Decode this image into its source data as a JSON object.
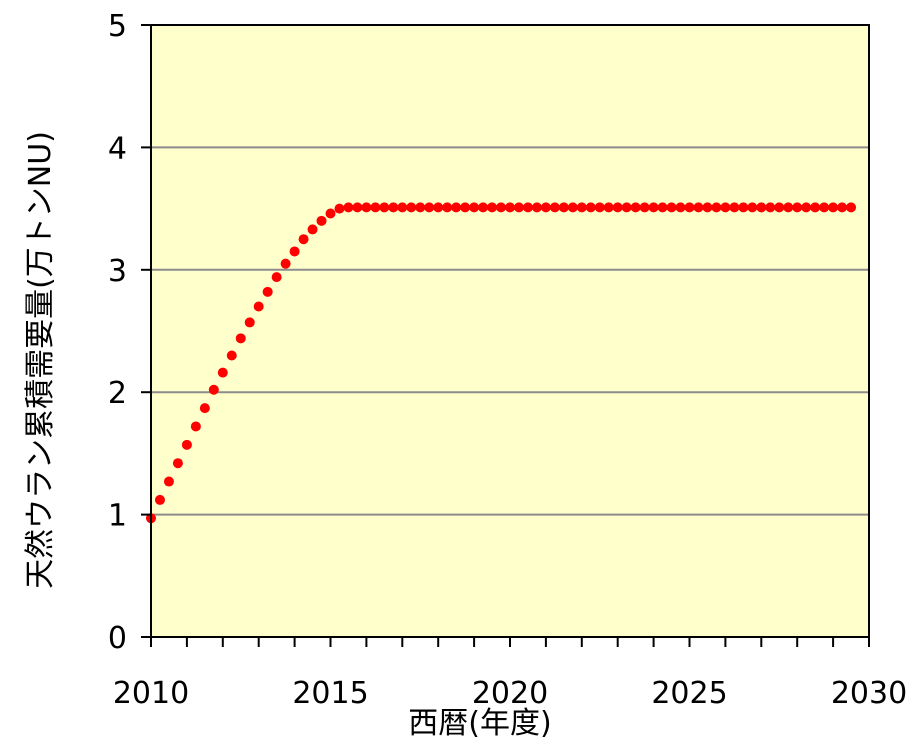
{
  "chart_data": {
    "type": "scatter",
    "xlabel": "西暦(年度)",
    "ylabel": "天然ウラン累積需要量(万トンNU)",
    "xlim": [
      2010,
      2030
    ],
    "ylim": [
      0,
      5
    ],
    "x_ticks": [
      "2010",
      "2015",
      "2020",
      "2025",
      "2030"
    ],
    "y_ticks": [
      "0",
      "1",
      "2",
      "3",
      "4",
      "5"
    ],
    "grid": "horizontal",
    "plot_background": "#FFFFCC",
    "marker_color": "#FF0000",
    "series": [
      {
        "x": [
          2010.0,
          2010.25,
          2010.5,
          2010.75,
          2011.0,
          2011.25,
          2011.5,
          2011.75,
          2012.0,
          2012.25,
          2012.5,
          2012.75,
          2013.0,
          2013.25,
          2013.5,
          2013.75,
          2014.0,
          2014.25,
          2014.5,
          2014.75,
          2015.0,
          2015.25,
          2015.5,
          2015.75,
          2016.0,
          2016.25,
          2016.5,
          2016.75,
          2017.0,
          2017.25,
          2017.5,
          2017.75,
          2018.0,
          2018.25,
          2018.5,
          2018.75,
          2019.0,
          2019.25,
          2019.5,
          2019.75,
          2020.0,
          2020.25,
          2020.5,
          2020.75,
          2021.0,
          2021.25,
          2021.5,
          2021.75,
          2022.0,
          2022.25,
          2022.5,
          2022.75,
          2023.0,
          2023.25,
          2023.5,
          2023.75,
          2024.0,
          2024.25,
          2024.5,
          2024.75,
          2025.0,
          2025.25,
          2025.5,
          2025.75,
          2026.0,
          2026.25,
          2026.5,
          2026.75,
          2027.0,
          2027.25,
          2027.5,
          2027.75,
          2028.0,
          2028.25,
          2028.5,
          2028.75,
          2029.0,
          2029.25,
          2029.5
        ],
        "y": [
          0.97,
          1.12,
          1.27,
          1.42,
          1.57,
          1.72,
          1.87,
          2.02,
          2.16,
          2.3,
          2.44,
          2.57,
          2.7,
          2.82,
          2.94,
          3.05,
          3.15,
          3.25,
          3.33,
          3.4,
          3.46,
          3.5,
          3.51,
          3.51,
          3.51,
          3.51,
          3.51,
          3.51,
          3.51,
          3.51,
          3.51,
          3.51,
          3.51,
          3.51,
          3.51,
          3.51,
          3.51,
          3.51,
          3.51,
          3.51,
          3.51,
          3.51,
          3.51,
          3.51,
          3.51,
          3.51,
          3.51,
          3.51,
          3.51,
          3.51,
          3.51,
          3.51,
          3.51,
          3.51,
          3.51,
          3.51,
          3.51,
          3.51,
          3.51,
          3.51,
          3.51,
          3.51,
          3.51,
          3.51,
          3.51,
          3.51,
          3.51,
          3.51,
          3.51,
          3.51,
          3.51,
          3.51,
          3.51,
          3.51,
          3.51,
          3.51,
          3.51,
          3.51,
          3.51
        ]
      }
    ]
  }
}
